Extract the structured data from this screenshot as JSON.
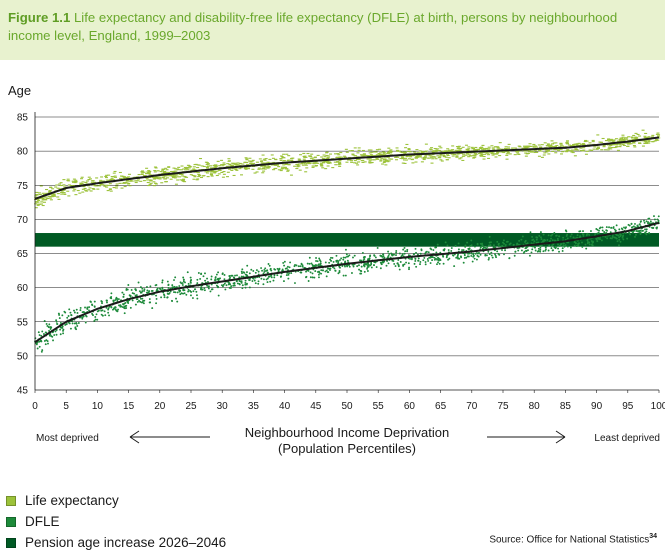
{
  "title": {
    "figure_label": "Figure 1.1",
    "text": "Life expectancy and disability-free life expectancy (DFLE) at birth, persons by neighbourhood income level, England, 1999–2003"
  },
  "colors": {
    "life_expectancy": "#9cc23a",
    "dfle": "#1d8a3a",
    "pension_band": "#005a24",
    "trend_line": "#1a1a1a",
    "title_bg": "#e8f2cf",
    "title_text": "#6aa82c"
  },
  "chart_data": {
    "type": "scatter",
    "ylabel": "Age",
    "xlabel_line1": "Neighbourhood Income Deprivation",
    "xlabel_line2": "(Population Percentiles)",
    "left_annotation": "Most deprived",
    "right_annotation": "Least deprived",
    "xlim": [
      0,
      100
    ],
    "ylim": [
      45,
      85
    ],
    "x_ticks": [
      "0",
      "5",
      "10",
      "15",
      "20",
      "25",
      "30",
      "35",
      "40",
      "45",
      "50",
      "55",
      "60",
      "65",
      "70",
      "75",
      "80",
      "85",
      "90",
      "95",
      "100"
    ],
    "y_ticks": [
      "45",
      "50",
      "55",
      "60",
      "65",
      "70",
      "75",
      "80",
      "85"
    ],
    "grid_y": true,
    "series": [
      {
        "name": "Life expectancy",
        "trend": {
          "x": [
            0,
            5,
            10,
            15,
            20,
            25,
            30,
            35,
            40,
            45,
            50,
            55,
            60,
            65,
            70,
            75,
            80,
            85,
            90,
            95,
            100
          ],
          "y": [
            73.0,
            74.6,
            75.3,
            75.9,
            76.5,
            77.0,
            77.5,
            77.9,
            78.3,
            78.6,
            78.9,
            79.2,
            79.5,
            79.7,
            79.9,
            80.1,
            80.3,
            80.5,
            80.9,
            81.4,
            82.0
          ]
        },
        "spread": 1.8
      },
      {
        "name": "DFLE",
        "trend": {
          "x": [
            0,
            5,
            10,
            15,
            20,
            25,
            30,
            35,
            40,
            45,
            50,
            55,
            60,
            65,
            70,
            75,
            80,
            85,
            90,
            95,
            100
          ],
          "y": [
            52.0,
            55.0,
            56.9,
            58.3,
            59.4,
            60.2,
            60.9,
            61.6,
            62.3,
            62.9,
            63.5,
            64.0,
            64.5,
            64.9,
            65.3,
            65.8,
            66.3,
            66.8,
            67.5,
            68.3,
            69.5
          ]
        },
        "spread": 2.4
      }
    ],
    "band": {
      "name": "Pension age increase 2026–2046",
      "y_range": [
        66,
        68
      ]
    }
  },
  "legend": {
    "items": [
      {
        "label": "Life expectancy"
      },
      {
        "label": "DFLE"
      },
      {
        "label": "Pension age increase 2026–2046"
      }
    ]
  },
  "source": {
    "text": "Source: Office for National Statistics",
    "superscript": "34"
  }
}
